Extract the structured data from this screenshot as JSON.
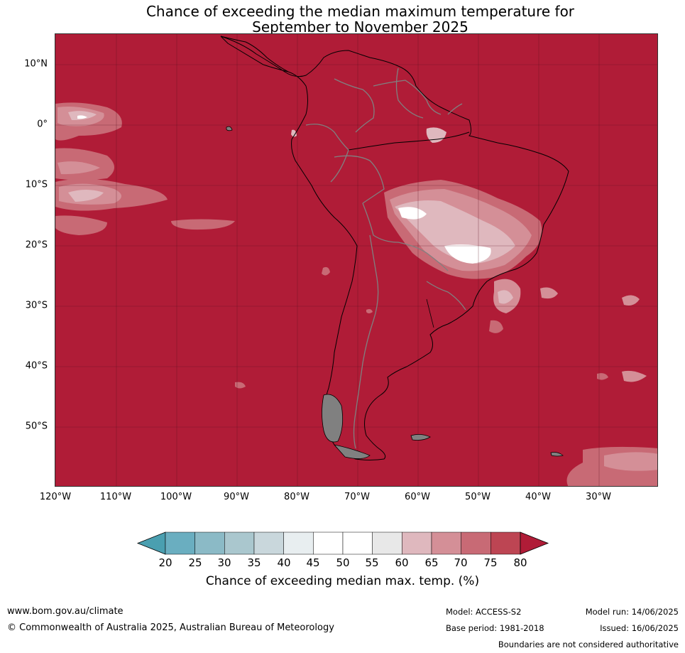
{
  "title": {
    "line1": "Chance of exceeding the median maximum temperature for",
    "line2": "September to November 2025"
  },
  "map": {
    "lat_labels": [
      "10°N",
      "0°",
      "10°S",
      "20°S",
      "30°S",
      "40°S",
      "50°S"
    ],
    "lon_labels": [
      "120°W",
      "110°W",
      "100°W",
      "90°W",
      "80°W",
      "70°W",
      "60°W",
      "50°W",
      "40°W",
      "30°W"
    ],
    "background_color": "#b01c37"
  },
  "colorbar": {
    "ticks": [
      "20",
      "25",
      "30",
      "35",
      "40",
      "45",
      "50",
      "55",
      "60",
      "65",
      "70",
      "75",
      "80"
    ],
    "colors": [
      "#4a9fb0",
      "#6aaec0",
      "#8bbac6",
      "#aac7ce",
      "#c9d7dc",
      "#e8eef0",
      "#ffffff",
      "#ffffff",
      "#e8e8e8",
      "#dfb8be",
      "#d48f97",
      "#c86a75",
      "#bd4553",
      "#b01c37"
    ],
    "label": "Chance of exceeding median max. temp. (%)"
  },
  "footer": {
    "website": "www.bom.gov.au/climate",
    "copyright": "© Commonwealth of Australia 2025, Australian Bureau of Meteorology",
    "model": "Model: ACCESS-S2",
    "base_period": "Base period: 1981-2018",
    "model_run": "Model run: 14/06/2025",
    "issued": "Issued: 16/06/2025",
    "disclaimer": "Boundaries are not considered authoritative"
  }
}
